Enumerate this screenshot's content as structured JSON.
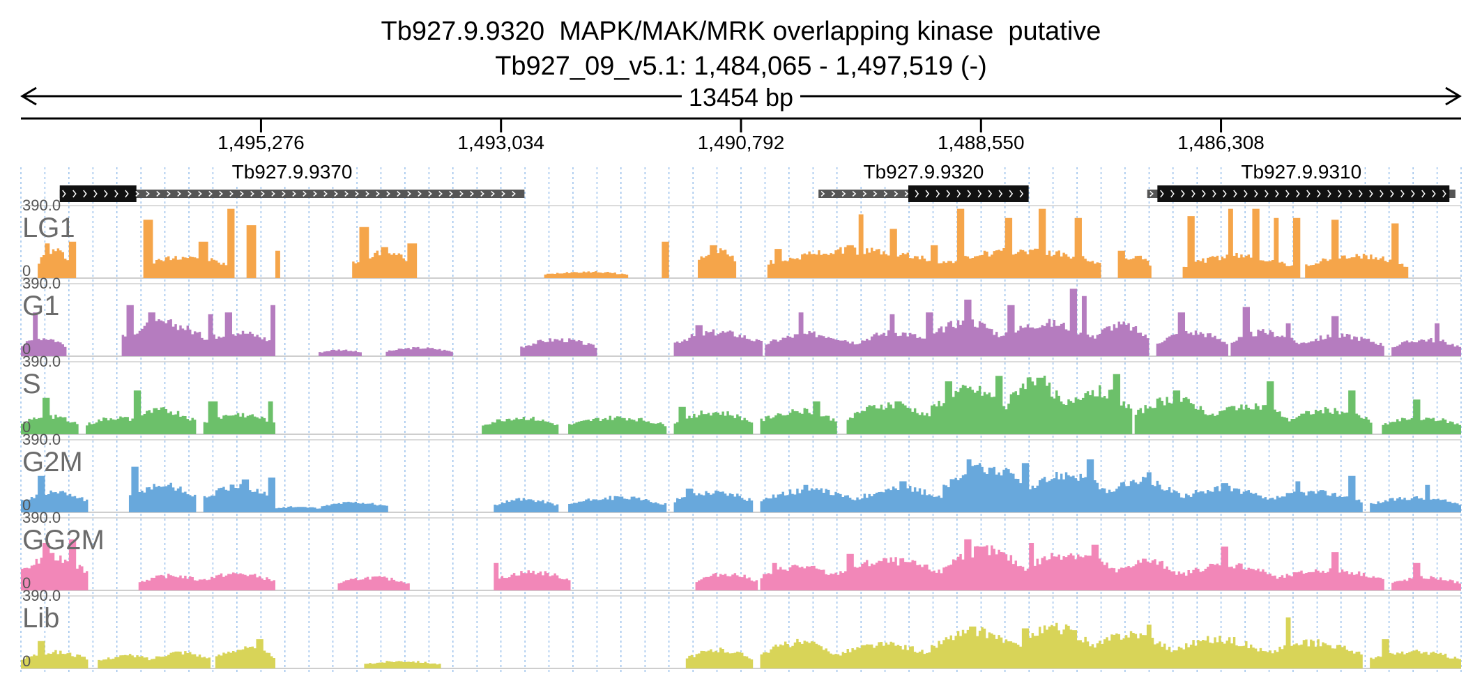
{
  "header": {
    "title_line1": "Tb927.9.9320  MAPK/MAK/MRK overlapping kinase  putative",
    "title_line2": "Tb927_09_v5.1: 1,484,065 - 1,497,519 (-)"
  },
  "region": {
    "chrom": "Tb927_09_v5.1",
    "start": 1484065,
    "end": 1497519,
    "strand": "-",
    "span_label": "13454 bp"
  },
  "axis_ticks": [
    {
      "label": "1,495,276",
      "value": 1495276
    },
    {
      "label": "1,493,034",
      "value": 1493034
    },
    {
      "label": "1,490,792",
      "value": 1490792
    },
    {
      "label": "1,488,550",
      "value": 1488550
    },
    {
      "label": "1,486,308",
      "value": 1486308
    }
  ],
  "genes": [
    {
      "name": "Tb927.9.9370",
      "start": 1492815,
      "end": 1497156,
      "cds_start": 1496440,
      "cds_end": 1497156
    },
    {
      "name": "Tb927.9.9320",
      "start": 1488105,
      "end": 1490068,
      "cds_start": 1488105,
      "cds_end": 1489229
    },
    {
      "name": "Tb927.9.9310",
      "start": 1484118,
      "end": 1486997,
      "cds_start": 1484174,
      "cds_end": 1486902
    }
  ],
  "tracks": [
    {
      "name": "LG1",
      "color": "#f5a54a",
      "max_label": "390.0",
      "min_label": "0",
      "max": 390
    },
    {
      "name": "G1",
      "color": "#b57cbf",
      "max_label": "390.0",
      "min_label": "0",
      "max": 390
    },
    {
      "name": "S",
      "color": "#6cc06a",
      "max_label": "390.0",
      "min_label": "0",
      "max": 390
    },
    {
      "name": "G2M",
      "color": "#68a8dc",
      "max_label": "390.0",
      "min_label": "0",
      "max": 390
    },
    {
      "name": "GG2M",
      "color": "#f287b8",
      "max_label": "390.0",
      "min_label": "0",
      "max": 390
    },
    {
      "name": "Lib",
      "color": "#d8d458",
      "max_label": "390.0",
      "min_label": "0",
      "max": 390
    }
  ],
  "coverage_spec": {
    "LG1": {
      "hills": [
        [
          1497350,
          1497050,
          150
        ],
        [
          1496370,
          1495580,
          120
        ],
        [
          1494410,
          1493860,
          140
        ],
        [
          1492630,
          1491860,
          35
        ],
        [
          1491180,
          1490850,
          160
        ],
        [
          1490540,
          1488900,
          150
        ],
        [
          1488900,
          1487450,
          150
        ],
        [
          1487250,
          1486970,
          120
        ],
        [
          1486650,
          1485640,
          120
        ],
        [
          1485520,
          1484560,
          120
        ]
      ],
      "spikes": [
        [
          1497290,
          1497250,
          190
        ],
        [
          1497060,
          1497020,
          200
        ],
        [
          1496360,
          1496300,
          320
        ],
        [
          1495840,
          1495790,
          200
        ],
        [
          1495580,
          1495530,
          380
        ],
        [
          1495390,
          1495330,
          290
        ],
        [
          1495140,
          1495100,
          150
        ],
        [
          1494340,
          1494270,
          280
        ],
        [
          1494150,
          1494100,
          170
        ],
        [
          1493890,
          1493840,
          190
        ],
        [
          1491520,
          1491480,
          200
        ],
        [
          1491080,
          1491030,
          180
        ],
        [
          1490460,
          1490420,
          160
        ],
        [
          1489800,
          1489760,
          180
        ],
        [
          1489680,
          1489650,
          350
        ],
        [
          1489400,
          1489350,
          270
        ],
        [
          1489000,
          1488960,
          180
        ],
        [
          1488760,
          1488720,
          380
        ],
        [
          1488310,
          1488270,
          330
        ],
        [
          1487990,
          1487950,
          380
        ],
        [
          1487660,
          1487610,
          330
        ],
        [
          1487250,
          1487220,
          150
        ],
        [
          1486610,
          1486570,
          340
        ],
        [
          1486240,
          1486200,
          380
        ],
        [
          1486000,
          1485960,
          380
        ],
        [
          1485800,
          1485770,
          330
        ],
        [
          1485620,
          1485570,
          330
        ],
        [
          1485260,
          1485230,
          320
        ],
        [
          1484700,
          1484660,
          300
        ]
      ]
    },
    "G1": {
      "hills": [
        [
          1497519,
          1497100,
          100
        ],
        [
          1496560,
          1495800,
          180
        ],
        [
          1495850,
          1495160,
          130
        ],
        [
          1494720,
          1494340,
          35
        ],
        [
          1494100,
          1493500,
          45
        ],
        [
          1492850,
          1492150,
          90
        ],
        [
          1491400,
          1490600,
          130
        ],
        [
          1490550,
          1489700,
          120
        ],
        [
          1489700,
          1489000,
          130
        ],
        [
          1489000,
          1488350,
          190
        ],
        [
          1488350,
          1487500,
          180
        ],
        [
          1487500,
          1487000,
          170
        ],
        [
          1486900,
          1486250,
          130
        ],
        [
          1486200,
          1485600,
          130
        ],
        [
          1485600,
          1484800,
          110
        ],
        [
          1484700,
          1484065,
          90
        ]
      ],
      "spikes": [
        [
          1497400,
          1497380,
          240
        ],
        [
          1496520,
          1496480,
          280
        ],
        [
          1496320,
          1496280,
          240
        ],
        [
          1495760,
          1495730,
          230
        ],
        [
          1495600,
          1495560,
          240
        ],
        [
          1495180,
          1495150,
          280
        ],
        [
          1491200,
          1491170,
          170
        ],
        [
          1490250,
          1490210,
          240
        ],
        [
          1489400,
          1489360,
          230
        ],
        [
          1489050,
          1489010,
          240
        ],
        [
          1488700,
          1488660,
          310
        ],
        [
          1488300,
          1488250,
          280
        ],
        [
          1487700,
          1487660,
          370
        ],
        [
          1487600,
          1487570,
          330
        ],
        [
          1486700,
          1486650,
          240
        ],
        [
          1486100,
          1486060,
          270
        ],
        [
          1485700,
          1485660,
          180
        ],
        [
          1485260,
          1485230,
          220
        ],
        [
          1484300,
          1484270,
          180
        ]
      ]
    },
    "S": {
      "hills": [
        [
          1497519,
          1497000,
          100
        ],
        [
          1496900,
          1496350,
          90
        ],
        [
          1496500,
          1495900,
          130
        ],
        [
          1495800,
          1495150,
          110
        ],
        [
          1493200,
          1492500,
          90
        ],
        [
          1492400,
          1491500,
          90
        ],
        [
          1491400,
          1490700,
          120
        ],
        [
          1490600,
          1489900,
          130
        ],
        [
          1489800,
          1489000,
          160
        ],
        [
          1489000,
          1488300,
          240
        ],
        [
          1488300,
          1487800,
          300
        ],
        [
          1487800,
          1487150,
          240
        ],
        [
          1487100,
          1486400,
          190
        ],
        [
          1486400,
          1485700,
          160
        ],
        [
          1485700,
          1484900,
          130
        ],
        [
          1484800,
          1484065,
          90
        ]
      ],
      "spikes": [
        [
          1497300,
          1497270,
          200
        ],
        [
          1496460,
          1496420,
          240
        ],
        [
          1495750,
          1495700,
          180
        ],
        [
          1495200,
          1495170,
          180
        ],
        [
          1491360,
          1491320,
          150
        ],
        [
          1490100,
          1490060,
          180
        ],
        [
          1489350,
          1489310,
          180
        ],
        [
          1488880,
          1488840,
          290
        ],
        [
          1488400,
          1488360,
          320
        ],
        [
          1488020,
          1487980,
          310
        ],
        [
          1487300,
          1487260,
          330
        ],
        [
          1486750,
          1486710,
          240
        ],
        [
          1485860,
          1485830,
          290
        ],
        [
          1485100,
          1485060,
          240
        ],
        [
          1484500,
          1484460,
          190
        ]
      ]
    },
    "G2M": {
      "hills": [
        [
          1497519,
          1496900,
          110
        ],
        [
          1496500,
          1495900,
          150
        ],
        [
          1495800,
          1495150,
          140
        ],
        [
          1495200,
          1494700,
          30
        ],
        [
          1494700,
          1494100,
          55
        ],
        [
          1493100,
          1492500,
          70
        ],
        [
          1492400,
          1491500,
          80
        ],
        [
          1491400,
          1490700,
          110
        ],
        [
          1490600,
          1489700,
          120
        ],
        [
          1489700,
          1488900,
          130
        ],
        [
          1488900,
          1488100,
          240
        ],
        [
          1488100,
          1487400,
          210
        ],
        [
          1487400,
          1486700,
          170
        ],
        [
          1486700,
          1485900,
          130
        ],
        [
          1485900,
          1485000,
          110
        ],
        [
          1484900,
          1484065,
          80
        ]
      ],
      "spikes": [
        [
          1497350,
          1497310,
          200
        ],
        [
          1496470,
          1496430,
          250
        ],
        [
          1495450,
          1495410,
          180
        ],
        [
          1495200,
          1495160,
          190
        ],
        [
          1491300,
          1491260,
          130
        ],
        [
          1490200,
          1490170,
          150
        ],
        [
          1489300,
          1489260,
          170
        ],
        [
          1488680,
          1488640,
          290
        ],
        [
          1488150,
          1488110,
          270
        ],
        [
          1487550,
          1487510,
          290
        ],
        [
          1487000,
          1486960,
          220
        ],
        [
          1486300,
          1486260,
          160
        ],
        [
          1485600,
          1485570,
          170
        ],
        [
          1485100,
          1485060,
          200
        ],
        [
          1484400,
          1484360,
          150
        ]
      ]
    },
    "GG2M": {
      "hills": [
        [
          1497519,
          1496900,
          180
        ],
        [
          1496400,
          1495800,
          80
        ],
        [
          1495850,
          1495150,
          90
        ],
        [
          1494550,
          1493900,
          70
        ],
        [
          1493100,
          1492400,
          100
        ],
        [
          1491200,
          1490650,
          90
        ],
        [
          1490600,
          1489900,
          130
        ],
        [
          1489900,
          1488900,
          160
        ],
        [
          1488900,
          1488150,
          220
        ],
        [
          1488150,
          1487300,
          200
        ],
        [
          1487300,
          1486700,
          160
        ],
        [
          1486700,
          1485800,
          140
        ],
        [
          1485800,
          1484800,
          110
        ],
        [
          1484700,
          1484065,
          70
        ]
      ],
      "spikes": [
        [
          1497300,
          1497250,
          260
        ],
        [
          1497050,
          1497010,
          280
        ],
        [
          1493100,
          1493060,
          150
        ],
        [
          1490500,
          1490460,
          150
        ],
        [
          1489800,
          1489760,
          200
        ],
        [
          1488700,
          1488660,
          280
        ],
        [
          1488100,
          1488060,
          260
        ],
        [
          1487500,
          1487460,
          250
        ],
        [
          1486300,
          1486260,
          240
        ],
        [
          1485260,
          1485230,
          210
        ],
        [
          1484500,
          1484460,
          150
        ]
      ]
    },
    "Lib": {
      "hills": [
        [
          1497519,
          1496900,
          90
        ],
        [
          1496800,
          1496250,
          70
        ],
        [
          1496300,
          1495750,
          90
        ],
        [
          1495700,
          1495150,
          110
        ],
        [
          1494300,
          1493600,
          40
        ],
        [
          1491300,
          1490700,
          100
        ],
        [
          1490600,
          1489900,
          140
        ],
        [
          1489900,
          1489000,
          130
        ],
        [
          1489000,
          1488200,
          200
        ],
        [
          1488200,
          1487500,
          220
        ],
        [
          1487500,
          1486800,
          190
        ],
        [
          1486800,
          1485900,
          160
        ],
        [
          1485900,
          1485000,
          140
        ],
        [
          1484900,
          1484065,
          90
        ]
      ],
      "spikes": [
        [
          1497350,
          1497310,
          150
        ],
        [
          1495300,
          1495260,
          160
        ],
        [
          1490200,
          1490160,
          140
        ],
        [
          1488650,
          1488610,
          230
        ],
        [
          1488150,
          1488110,
          220
        ],
        [
          1487700,
          1487660,
          210
        ],
        [
          1487000,
          1486960,
          240
        ],
        [
          1485700,
          1485660,
          280
        ],
        [
          1484800,
          1484760,
          160
        ]
      ]
    }
  }
}
